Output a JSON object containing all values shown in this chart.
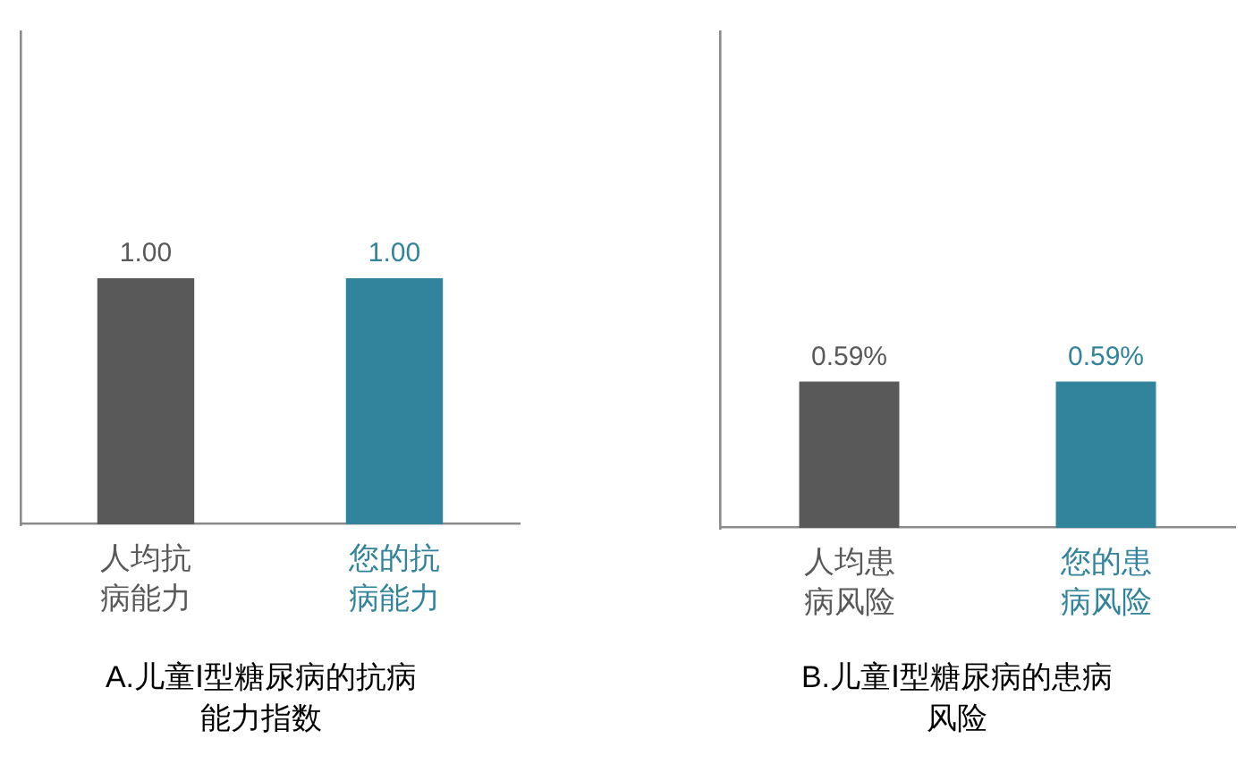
{
  "chart_data": [
    {
      "type": "bar",
      "title": "A.儿童Ⅰ型糖尿病的抗病能力指数",
      "categories": [
        "人均抗病能力",
        "您的抗病能力"
      ],
      "values": [
        1.0,
        1.0
      ],
      "colors": [
        "#595959",
        "#31849b"
      ],
      "value_labels": [
        "1.00",
        "1.00"
      ],
      "ylim": [
        0,
        2
      ]
    },
    {
      "type": "bar",
      "title": "B.儿童Ⅰ型糖尿病的患病风险",
      "categories": [
        "人均患病风险",
        "您的患病风险"
      ],
      "values": [
        0.59,
        0.59
      ],
      "colors": [
        "#595959",
        "#31849b"
      ],
      "value_labels": [
        "0.59%",
        "0.59%"
      ],
      "ylim": [
        0,
        2
      ]
    }
  ]
}
